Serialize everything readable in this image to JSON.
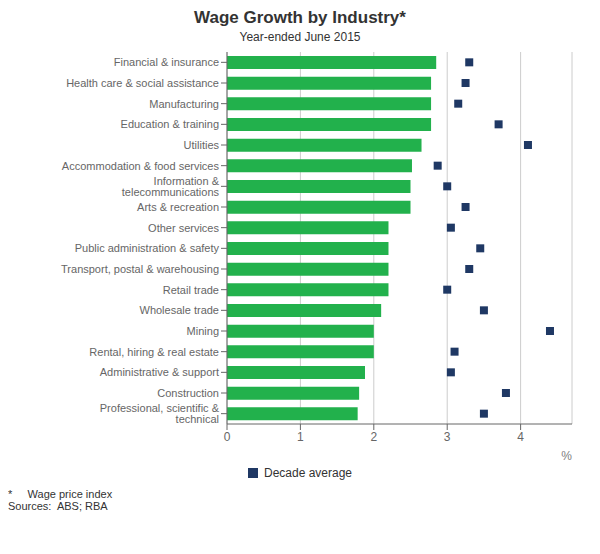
{
  "chart_data": {
    "type": "bar",
    "orientation": "horizontal",
    "title": "Wage Growth by Industry*",
    "subtitle": "Year-ended June 2015",
    "xlabel": "%",
    "annotations": [
      "*     Wage price index",
      "Sources:  ABS; RBA"
    ],
    "categories": [
      "Financial & insurance",
      "Health care & social assistance",
      "Manufacturing",
      "Education & training",
      "Utilities",
      "Accommodation & food services",
      "Information & telecommunications",
      "Arts & recreation",
      "Other services",
      "Public administration & safety",
      "Transport, postal & warehousing",
      "Retail trade",
      "Wholesale trade",
      "Mining",
      "Rental, hiring & real estate",
      "Administrative & support",
      "Construction",
      "Professional, scientific & technical"
    ],
    "series": [
      {
        "type": "bar",
        "color": "#22b14c",
        "values": [
          2.85,
          2.78,
          2.78,
          2.78,
          2.65,
          2.52,
          2.5,
          2.5,
          2.2,
          2.2,
          2.2,
          2.2,
          2.1,
          2.0,
          2.0,
          1.88,
          1.8,
          1.78
        ]
      },
      {
        "name": "Decade average",
        "type": "scatter",
        "marker": "square",
        "color": "#1f3864",
        "values": [
          3.3,
          3.25,
          3.15,
          3.7,
          4.1,
          2.87,
          3.0,
          3.25,
          3.05,
          3.45,
          3.3,
          3.0,
          3.5,
          4.4,
          3.1,
          3.05,
          3.8,
          3.5
        ]
      }
    ],
    "xlim": [
      0,
      4.7
    ],
    "xticks": [
      0,
      1,
      2,
      3,
      4
    ],
    "grid": true,
    "legend": "bottom"
  }
}
